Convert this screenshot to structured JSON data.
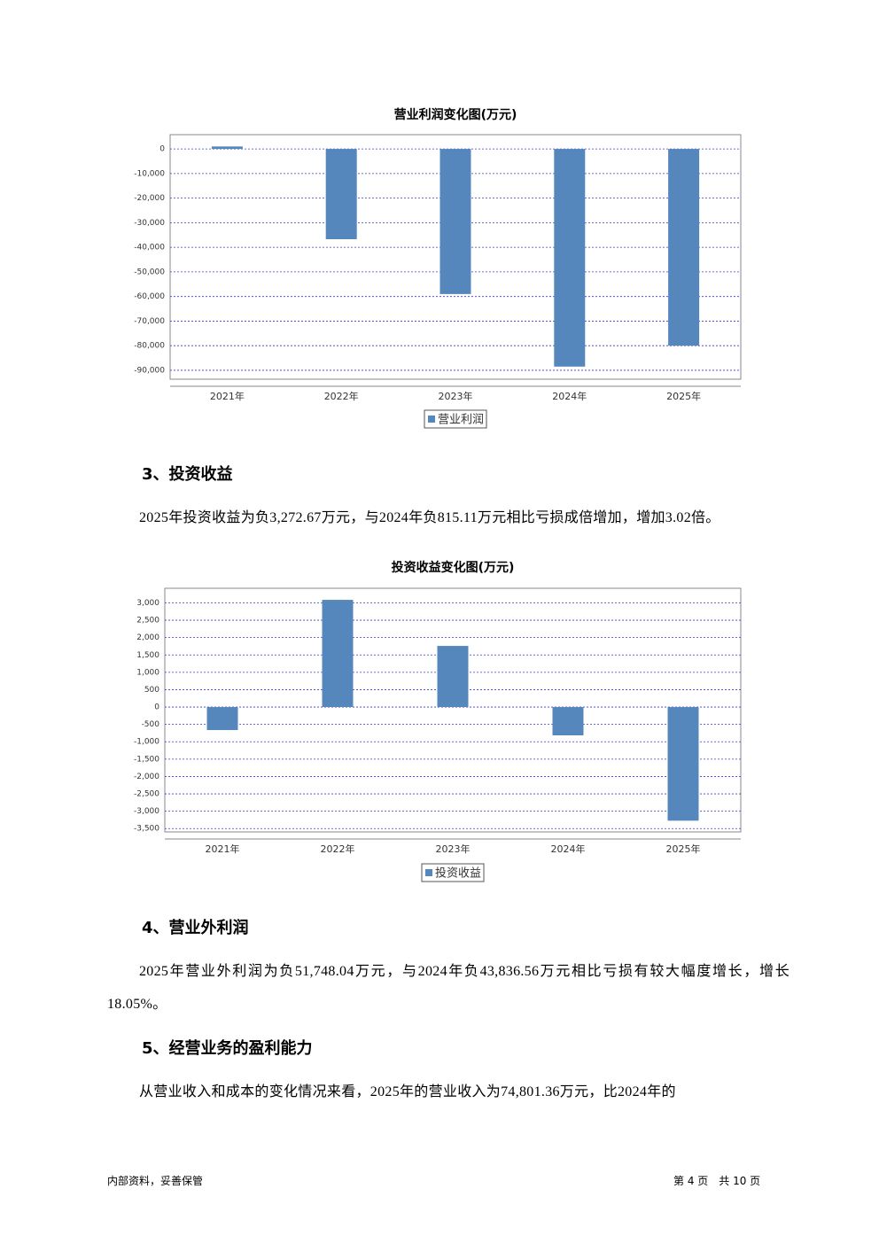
{
  "chart_data": [
    {
      "type": "bar",
      "title": "营业利润变化图(万元)",
      "categories": [
        "2021年",
        "2022年",
        "2023年",
        "2024年",
        "2025年"
      ],
      "series": [
        {
          "name": "营业利润",
          "color": "#5587bd",
          "values": [
            1000,
            -36700,
            -59000,
            -88500,
            -80000
          ]
        }
      ],
      "ylim": [
        -96500,
        5800
      ],
      "yticks": [
        0,
        {
          "value": -10000,
          "label": "-10,000"
        },
        {
          "value": -20000,
          "label": "-20,000"
        },
        {
          "value": -30000,
          "label": "-30,000"
        },
        {
          "value": -40000,
          "label": "-40,000"
        },
        {
          "value": -50000,
          "label": "-50,000"
        },
        {
          "value": -60000,
          "label": "-60,000"
        },
        {
          "value": -70000,
          "label": "-70,000"
        },
        {
          "value": -80000,
          "label": "-80,000"
        },
        {
          "value": -90000,
          "label": "-90,000"
        }
      ],
      "grid": true
    },
    {
      "type": "bar",
      "title": "投资收益变化图(万元)",
      "categories": [
        "2021年",
        "2022年",
        "2023年",
        "2024年",
        "2025年"
      ],
      "series": [
        {
          "name": "投资收益",
          "color": "#5587bd",
          "values": [
            -663,
            3087,
            1760,
            -815.11,
            -3272.67
          ]
        }
      ],
      "ylim": [
        -3800,
        3420
      ],
      "yticks": [
        {
          "value": 3000,
          "label": "3,000"
        },
        {
          "value": 2500,
          "label": "2,500"
        },
        {
          "value": 2000,
          "label": "2,000"
        },
        {
          "value": 1500,
          "label": "1,500"
        },
        {
          "value": 1000,
          "label": "1,000"
        },
        500,
        0,
        -500,
        {
          "value": -1000,
          "label": "-1,000"
        },
        {
          "value": -1500,
          "label": "-1,500"
        },
        {
          "value": -2000,
          "label": "-2,000"
        },
        {
          "value": -2500,
          "label": "-2,500"
        },
        {
          "value": -3000,
          "label": "-3,000"
        },
        {
          "value": -3500,
          "label": "-3,500"
        }
      ],
      "grid": true
    }
  ],
  "document": {
    "headings": [
      "3、投资收益",
      "4、营业外利润",
      "5、经营业务的盈利能力"
    ],
    "paragraphs": [
      "2025年投资收益为负3,272.67万元，与2024年负815.11万元相比亏损成倍增加，增加3.02倍。",
      "2025年营业外利润为负51,748.04万元，与2024年负43,836.56万元相比亏损有较大幅度增长，增长18.05%。",
      "从营业收入和成本的变化情况来看，2025年的营业收入为74,801.36万元，比2024年的"
    ]
  },
  "footer": {
    "left": "内部资料，妥善保管",
    "right": "第 4 页　共 10 页"
  }
}
